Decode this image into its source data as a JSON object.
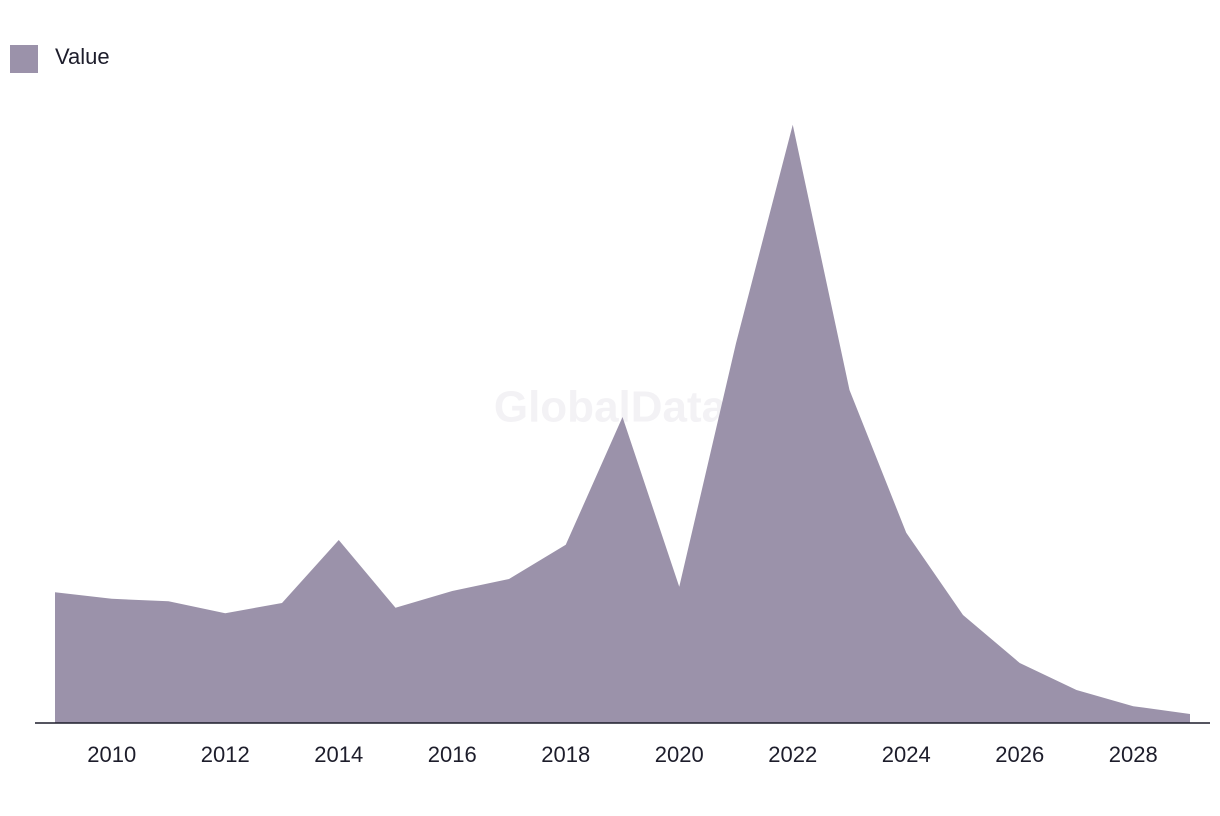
{
  "chart_data": {
    "type": "area",
    "watermark": "GlobalData",
    "x": [
      2009,
      2010,
      2011,
      2012,
      2013,
      2014,
      2015,
      2016,
      2017,
      2018,
      2019,
      2020,
      2021,
      2022,
      2023,
      2024,
      2025,
      2026,
      2027,
      2028,
      2029
    ],
    "series": [
      {
        "name": "Value",
        "color": "#9b92aa",
        "values": [
          21.8,
          20.7,
          20.3,
          18.3,
          20.0,
          30.5,
          19.2,
          22.0,
          24.0,
          29.7,
          51.0,
          22.7,
          63.3,
          99.7,
          55.5,
          31.7,
          18.0,
          10.0,
          5.5,
          2.8,
          1.5
        ]
      }
    ],
    "xlim": [
      2009,
      2029
    ],
    "xticks": [
      2010,
      2012,
      2014,
      2016,
      2018,
      2020,
      2022,
      2024,
      2026,
      2028
    ],
    "ylim": [
      0,
      100
    ],
    "legend": "top-left"
  }
}
